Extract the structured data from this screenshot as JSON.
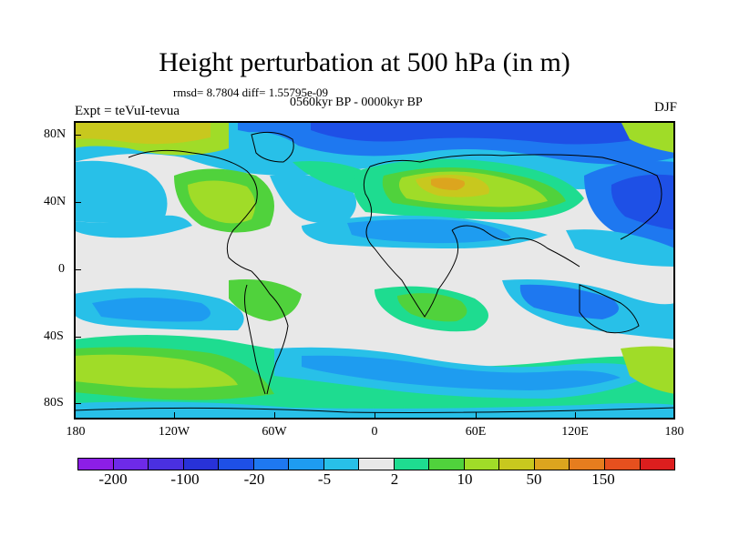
{
  "title": "Height perturbation at 500 hPa (in m)",
  "subtitle_stats": "rmsd= 8.7804 diff= 1.55795e-09",
  "subtitle_period": "0560kyr BP - 0000kyr BP",
  "experiment_label": "Expt = teVuI-tevua",
  "season_label": "DJF",
  "lat_labels": [
    "80N",
    "40N",
    "0",
    "40S",
    "80S"
  ],
  "lon_labels": [
    "180",
    "120W",
    "60W",
    "0",
    "60E",
    "120E",
    "180"
  ],
  "colorbar": {
    "colors": [
      "#8c1ee6",
      "#6e2ae8",
      "#4a30e0",
      "#2832d8",
      "#1e50e6",
      "#1e78f0",
      "#1e9cf0",
      "#28c0e8",
      "#e8e8e8",
      "#1edc90",
      "#50d23c",
      "#a0dc28",
      "#c8c81e",
      "#dca51e",
      "#e67d1e",
      "#e6501e",
      "#dc1e1e"
    ],
    "labels": [
      "-200",
      "-100",
      "-20",
      "-5",
      "2",
      "10",
      "50",
      "150"
    ]
  },
  "map_colors": {
    "background": "#e8e8e8",
    "light_blue": "#28c0e8",
    "mid_blue": "#1e9cf0",
    "blue": "#1e78f0",
    "deep_blue": "#1e50e6",
    "teal": "#1edc90",
    "green": "#50d23c",
    "yellow_green": "#a0dc28",
    "olive": "#c8c81e",
    "orange": "#dca51e"
  }
}
